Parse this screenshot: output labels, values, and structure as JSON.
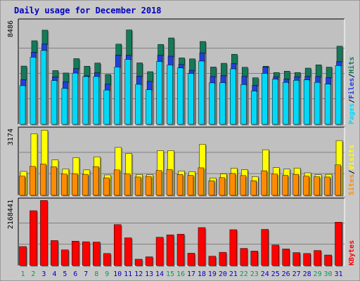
{
  "title": "Daily usage for December 2018",
  "colors": {
    "page_bg": "#c8c8c8",
    "plot_bg": "#c0c0c0",
    "title": "#0000c0",
    "hits": "#137a5a",
    "files": "#2040e0",
    "pages": "#00d8f8",
    "visits": "#ffff00",
    "sites": "#ff8c00",
    "kbytes": "#ff0000",
    "weekend_label": "#00a050",
    "weekday_label": "#0000c0"
  },
  "chart_data": [
    {
      "type": "bar",
      "categories": [
        "1",
        "2",
        "3",
        "4",
        "5",
        "6",
        "7",
        "8",
        "9",
        "10",
        "11",
        "12",
        "13",
        "14",
        "15",
        "16",
        "17",
        "18",
        "19",
        "20",
        "21",
        "22",
        "23",
        "24",
        "25",
        "26",
        "27",
        "28",
        "29",
        "30",
        "31"
      ],
      "weekend_days": [
        "1",
        "2",
        "8",
        "9",
        "15",
        "16",
        "22",
        "23",
        "29",
        "30"
      ],
      "ymax_label": "8486",
      "ylim": [
        0,
        8486
      ],
      "series": [
        {
          "name": "Hits",
          "values": [
            4790,
            6870,
            7740,
            4420,
            4220,
            5400,
            4780,
            5040,
            4100,
            6590,
            7760,
            5050,
            4330,
            6570,
            7100,
            5460,
            5380,
            6810,
            4710,
            5020,
            5760,
            4690,
            3830,
            4780,
            4260,
            4370,
            4260,
            4620,
            4890,
            4700,
            6420
          ]
        },
        {
          "name": "Files",
          "values": [
            3680,
            5930,
            6600,
            3900,
            3480,
            4580,
            3980,
            4240,
            3300,
            5700,
            5670,
            3950,
            3530,
            5680,
            5600,
            4920,
            4440,
            5880,
            3930,
            4010,
            4990,
            3940,
            3210,
            4710,
            3920,
            3730,
            3920,
            3940,
            3930,
            3850,
            5160
          ]
        },
        {
          "name": "Pages",
          "values": [
            3180,
            5520,
            6070,
            3600,
            2950,
            4210,
            3930,
            3930,
            2820,
            4710,
            5340,
            3290,
            2850,
            5160,
            4880,
            4640,
            4180,
            5200,
            3410,
            3430,
            4560,
            3270,
            2740,
            4190,
            3710,
            3450,
            3620,
            3660,
            3450,
            3310,
            4830
          ]
        }
      ]
    },
    {
      "type": "bar",
      "categories": [
        "1",
        "2",
        "3",
        "4",
        "5",
        "6",
        "7",
        "8",
        "9",
        "10",
        "11",
        "12",
        "13",
        "14",
        "15",
        "16",
        "17",
        "18",
        "19",
        "20",
        "21",
        "22",
        "23",
        "24",
        "25",
        "26",
        "27",
        "28",
        "29",
        "30",
        "31"
      ],
      "ymax_label": "3174",
      "ylim": [
        0,
        3174
      ],
      "series": [
        {
          "name": "Visits",
          "values": [
            1150,
            2960,
            3130,
            1700,
            1270,
            1810,
            1220,
            1850,
            980,
            2300,
            2010,
            1000,
            990,
            2150,
            2150,
            1170,
            1140,
            2450,
            830,
            1030,
            1300,
            1230,
            900,
            2190,
            1330,
            1260,
            1310,
            1080,
            990,
            1010,
            2630
          ]
        },
        {
          "name": "Sites",
          "values": [
            920,
            1390,
            1500,
            1370,
            1020,
            1040,
            1010,
            1380,
            840,
            1220,
            1030,
            880,
            910,
            1190,
            1240,
            1000,
            960,
            1320,
            700,
            850,
            1050,
            950,
            700,
            1180,
            1020,
            960,
            1010,
            920,
            890,
            880,
            1460
          ]
        }
      ]
    },
    {
      "type": "bar",
      "categories": [
        "1",
        "2",
        "3",
        "4",
        "5",
        "6",
        "7",
        "8",
        "9",
        "10",
        "11",
        "12",
        "13",
        "14",
        "15",
        "16",
        "17",
        "18",
        "19",
        "20",
        "21",
        "22",
        "23",
        "24",
        "25",
        "26",
        "27",
        "28",
        "29",
        "30",
        "31"
      ],
      "ymax_label": "2168441",
      "ylim": [
        0,
        2168441
      ],
      "series": [
        {
          "name": "KBytes",
          "values": [
            630000,
            1820000,
            2160000,
            830000,
            520000,
            810000,
            790000,
            780000,
            400000,
            1360000,
            920000,
            210000,
            290000,
            940000,
            1020000,
            1040000,
            410000,
            1260000,
            310000,
            440000,
            1190000,
            570000,
            480000,
            1200000,
            680000,
            550000,
            430000,
            400000,
            500000,
            350000,
            1440000
          ]
        }
      ]
    }
  ]
}
